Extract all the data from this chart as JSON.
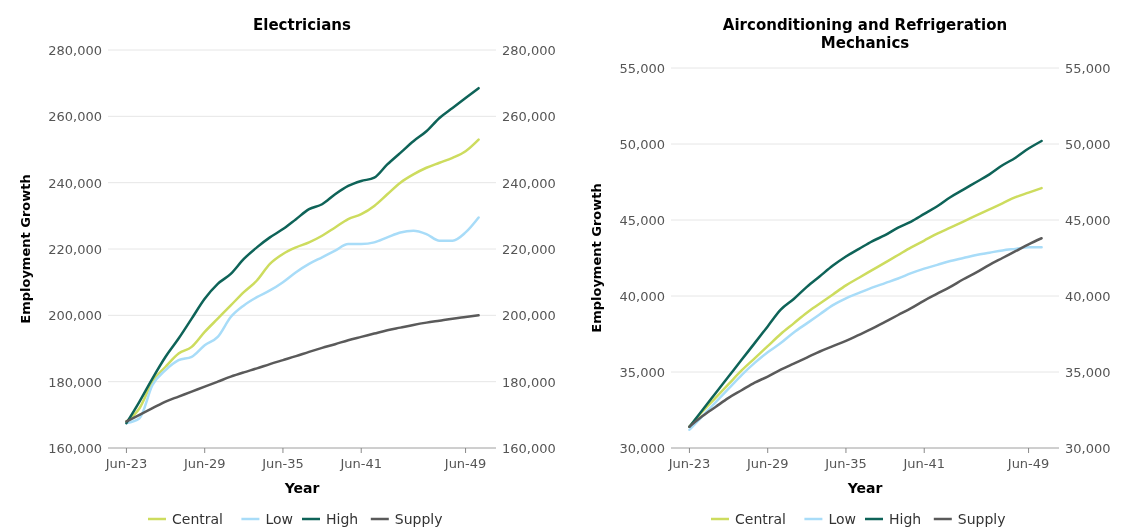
{
  "chart_data": [
    {
      "type": "line",
      "title": "Electricians",
      "xlabel": "Year",
      "ylabel": "Employment Growth",
      "legend": "bottom",
      "grid": "y",
      "x": [
        "2023-06",
        "2024-06",
        "2025-06",
        "2026-06",
        "2027-06",
        "2028-06",
        "2029-06",
        "2030-06",
        "2031-06",
        "2032-06",
        "2033-06",
        "2034-06",
        "2035-06",
        "2036-06",
        "2037-06",
        "2038-06",
        "2039-06",
        "2040-06",
        "2041-06",
        "2042-06",
        "2043-06",
        "2044-06",
        "2045-06",
        "2046-06",
        "2047-06",
        "2048-06",
        "2049-06",
        "2050-06"
      ],
      "xlim": [
        "2022-01",
        "2051-10"
      ],
      "xticks": [
        {
          "value": "2023-06",
          "label": "Jun-23"
        },
        {
          "value": "2029-06",
          "label": "Jun-29"
        },
        {
          "value": "2035-06",
          "label": "Jun-35"
        },
        {
          "value": "2041-06",
          "label": "Jun-41"
        },
        {
          "value": "2049-06",
          "label": "Jun-49"
        }
      ],
      "ylim": [
        160000,
        280000
      ],
      "yticks": [
        {
          "value": 160000,
          "label": "160,000"
        },
        {
          "value": 180000,
          "label": "180,000"
        },
        {
          "value": 200000,
          "label": "200,000"
        },
        {
          "value": 220000,
          "label": "220,000"
        },
        {
          "value": 240000,
          "label": "240,000"
        },
        {
          "value": 260000,
          "label": "260,000"
        },
        {
          "value": 280000,
          "label": "280,000"
        }
      ],
      "y2lim": [
        160000,
        280000
      ],
      "y2ticks": [
        {
          "value": 160000,
          "label": "160,000"
        },
        {
          "value": 180000,
          "label": "180,000"
        },
        {
          "value": 200000,
          "label": "200,000"
        },
        {
          "value": 220000,
          "label": "220,000"
        },
        {
          "value": 240000,
          "label": "240,000"
        },
        {
          "value": 260000,
          "label": "260,000"
        },
        {
          "value": 280000,
          "label": "280,000"
        }
      ],
      "series": [
        {
          "name": "Central",
          "color": "#cddc5e",
          "values": [
            168000,
            172000,
            180000,
            184500,
            188500,
            190500,
            195000,
            199000,
            203000,
            207000,
            210500,
            215500,
            218500,
            220500,
            222000,
            224000,
            226500,
            229000,
            230500,
            233000,
            236500,
            240000,
            242500,
            244500,
            246000,
            247500,
            249500,
            253000
          ]
        },
        {
          "name": "Low",
          "color": "#a8dcf8",
          "values": [
            167500,
            169000,
            179000,
            183500,
            186500,
            187500,
            191000,
            193500,
            199500,
            203000,
            205500,
            207500,
            210000,
            213000,
            215500,
            217500,
            219500,
            221500,
            221500,
            222000,
            223500,
            225000,
            225500,
            224500,
            222500,
            222500,
            225000,
            229500
          ]
        },
        {
          "name": "High",
          "color": "#0e6358",
          "values": [
            167500,
            174000,
            181000,
            187500,
            193000,
            199000,
            205000,
            209500,
            212500,
            217000,
            220500,
            223500,
            226000,
            229000,
            232000,
            233500,
            236500,
            239000,
            240500,
            241500,
            245500,
            249000,
            252500,
            255500,
            259500,
            262500,
            265500,
            268500
          ]
        },
        {
          "name": "Supply",
          "color": "#5a5a5a",
          "values": [
            168000,
            170000,
            172000,
            174000,
            175500,
            177000,
            178500,
            180000,
            181500,
            182800,
            184000,
            185300,
            186500,
            187700,
            189000,
            190200,
            191300,
            192500,
            193500,
            194500,
            195500,
            196300,
            197100,
            197800,
            198400,
            199000,
            199500,
            200000
          ]
        }
      ]
    },
    {
      "type": "line",
      "title": "Airconditioning and Refrigeration Mechanics",
      "xlabel": "Year",
      "ylabel": "Employment Growth",
      "legend": "bottom",
      "grid": "y",
      "x": [
        "2023-06",
        "2024-06",
        "2025-06",
        "2026-06",
        "2027-06",
        "2028-06",
        "2029-06",
        "2030-06",
        "2031-06",
        "2032-06",
        "2033-06",
        "2034-06",
        "2035-06",
        "2036-06",
        "2037-06",
        "2038-06",
        "2039-06",
        "2040-06",
        "2041-06",
        "2042-06",
        "2043-06",
        "2044-06",
        "2045-06",
        "2046-06",
        "2047-06",
        "2048-06",
        "2049-06",
        "2050-06"
      ],
      "xlim": [
        "2022-01",
        "2051-10"
      ],
      "xticks": [
        {
          "value": "2023-06",
          "label": "Jun-23"
        },
        {
          "value": "2029-06",
          "label": "Jun-29"
        },
        {
          "value": "2035-06",
          "label": "Jun-35"
        },
        {
          "value": "2041-06",
          "label": "Jun-41"
        },
        {
          "value": "2049-06",
          "label": "Jun-49"
        }
      ],
      "ylim": [
        30000,
        55000
      ],
      "yticks": [
        {
          "value": 30000,
          "label": "30,000"
        },
        {
          "value": 35000,
          "label": "35,000"
        },
        {
          "value": 40000,
          "label": "40,000"
        },
        {
          "value": 45000,
          "label": "45,000"
        },
        {
          "value": 50000,
          "label": "50,000"
        },
        {
          "value": 55000,
          "label": "55,000"
        }
      ],
      "y2lim": [
        30000,
        55000
      ],
      "y2ticks": [
        {
          "value": 30000,
          "label": "30,000"
        },
        {
          "value": 35000,
          "label": "35,000"
        },
        {
          "value": 40000,
          "label": "40,000"
        },
        {
          "value": 45000,
          "label": "45,000"
        },
        {
          "value": 50000,
          "label": "50,000"
        },
        {
          "value": 55000,
          "label": "55,000"
        }
      ],
      "series": [
        {
          "name": "Central",
          "color": "#cddc5e",
          "values": [
            31400,
            32400,
            33300,
            34200,
            35100,
            35900,
            36700,
            37500,
            38200,
            38900,
            39500,
            40100,
            40700,
            41200,
            41700,
            42200,
            42700,
            43200,
            43650,
            44100,
            44500,
            44900,
            45300,
            45700,
            46100,
            46500,
            46800,
            47100
          ]
        },
        {
          "name": "Low",
          "color": "#a8dcf8",
          "values": [
            31200,
            32100,
            33000,
            33900,
            34800,
            35600,
            36300,
            36900,
            37600,
            38200,
            38800,
            39400,
            39850,
            40200,
            40550,
            40850,
            41150,
            41500,
            41800,
            42050,
            42300,
            42500,
            42700,
            42850,
            43000,
            43100,
            43200,
            43200
          ]
        },
        {
          "name": "High",
          "color": "#0e6358",
          "values": [
            31400,
            32500,
            33600,
            34700,
            35800,
            36900,
            38000,
            39100,
            39800,
            40600,
            41300,
            42000,
            42600,
            43100,
            43600,
            44000,
            44500,
            44900,
            45400,
            45900,
            46500,
            47000,
            47500,
            48000,
            48600,
            49100,
            49700,
            50200
          ]
        },
        {
          "name": "Supply",
          "color": "#5a5a5a",
          "values": [
            31400,
            32100,
            32700,
            33300,
            33800,
            34300,
            34700,
            35150,
            35550,
            35950,
            36350,
            36700,
            37050,
            37450,
            37850,
            38300,
            38750,
            39200,
            39700,
            40150,
            40600,
            41100,
            41550,
            42050,
            42500,
            42950,
            43400,
            43800
          ]
        }
      ]
    }
  ]
}
